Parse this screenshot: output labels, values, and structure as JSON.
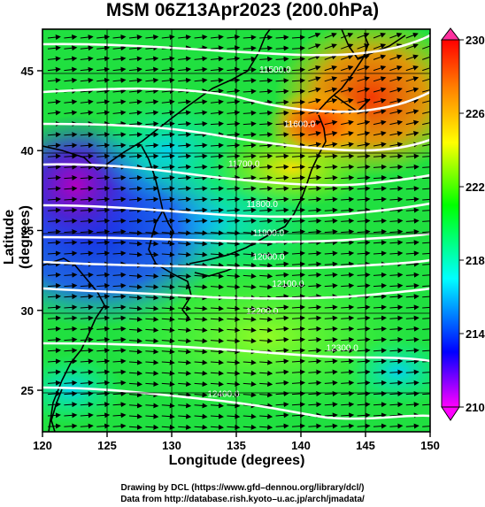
{
  "title": "MSM 06Z13Apr2023 (200.0hPa)",
  "xlabel": "Longitude (degrees)",
  "ylabel": "Latitude  (degrees)",
  "credit1": "Drawing by DCL (https://www.gfd–dennou.org/library/dcl/)",
  "credit2": "Data from http://database.rish.kyoto–u.ac.jp/arch/jmadata/",
  "map": {
    "lon_range": [
      120,
      150
    ],
    "lat_range": [
      22.4,
      47.6
    ],
    "x_ticks": [
      "120",
      "125",
      "130",
      "135",
      "140",
      "145",
      "150"
    ],
    "y_ticks": [
      "25",
      "30",
      "35",
      "40",
      "45"
    ],
    "grid": true
  },
  "colorbar": {
    "range": [
      210,
      230
    ],
    "tick_labels": [
      "230",
      "226",
      "222",
      "218",
      "214",
      "210"
    ],
    "colors": [
      "#ff00ff",
      "#0000ff",
      "#00ffff",
      "#00ff00",
      "#ffff00",
      "#ff8000",
      "#ff0000"
    ]
  },
  "contours": [
    {
      "label": "11500.0",
      "lon": 138.0,
      "lat": 45.1
    },
    {
      "label": "11600.0",
      "lon": 139.9,
      "lat": 41.7
    },
    {
      "label": "11700.0",
      "lon": 135.6,
      "lat": 39.2
    },
    {
      "label": "11800.0",
      "lon": 137.0,
      "lat": 36.7
    },
    {
      "label": "11900.0",
      "lon": 137.5,
      "lat": 34.9
    },
    {
      "label": "12000.0",
      "lon": 137.5,
      "lat": 33.4
    },
    {
      "label": "12100.0",
      "lon": 139.0,
      "lat": 31.7
    },
    {
      "label": "12200.0",
      "lon": 137.0,
      "lat": 30.0
    },
    {
      "label": "12300.0",
      "lon": 143.2,
      "lat": 27.7
    },
    {
      "label": "12400.0",
      "lon": 134.0,
      "lat": 24.8
    }
  ]
}
